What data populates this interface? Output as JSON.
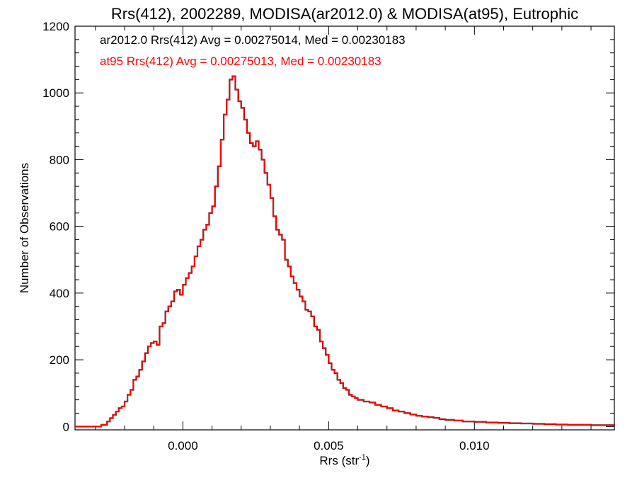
{
  "chart_data": {
    "type": "line",
    "title": "Rrs(412), 2002289, MODISA(ar2012.0) & MODISA(at95), Eutrophic",
    "xlabel": "Rrs (str",
    "xlabel_sup": "-1",
    "xlabel_close": ")",
    "ylabel": "Number of Observations",
    "xlim": [
      -0.0037,
      0.0148
    ],
    "ylim": [
      -10,
      1200
    ],
    "x_ticks": [
      0.0,
      0.005,
      0.01
    ],
    "x_tick_labels": [
      "0.000",
      "0.005",
      "0.010"
    ],
    "y_ticks": [
      0,
      200,
      400,
      600,
      800,
      1000,
      1200
    ],
    "y_tick_labels": [
      "0",
      "200",
      "400",
      "600",
      "800",
      "1000",
      "1200"
    ],
    "grid": false,
    "annotations": [
      {
        "text": "ar2012.0 Rrs(412) Avg = 0.00275014, Med = 0.00230183",
        "color": "#000000"
      },
      {
        "text": "at95 Rrs(412) Avg = 0.00275013, Med = 0.00230183",
        "color": "#ff0000"
      }
    ],
    "series": [
      {
        "color": "#000000",
        "x": [
          -0.0037,
          -0.0032,
          -0.0028,
          -0.0026,
          -0.0025,
          -0.0024,
          -0.0023,
          -0.0022,
          -0.0021,
          -0.002,
          -0.0019,
          -0.0018,
          -0.0017,
          -0.0016,
          -0.0015,
          -0.0014,
          -0.0013,
          -0.0012,
          -0.0011,
          -0.001,
          -0.0009,
          -0.0008,
          -0.0007,
          -0.0006,
          -0.0005,
          -0.0004,
          -0.0003,
          -0.0002,
          -0.0001,
          0.0,
          0.0001,
          0.0002,
          0.0003,
          0.0004,
          0.0005,
          0.0006,
          0.0007,
          0.0008,
          0.0009,
          0.001,
          0.0011,
          0.0012,
          0.0013,
          0.0014,
          0.0015,
          0.0016,
          0.0017,
          0.0018,
          0.0019,
          0.002,
          0.0021,
          0.0022,
          0.0023,
          0.0024,
          0.0025,
          0.0026,
          0.0027,
          0.0028,
          0.0029,
          0.003,
          0.0031,
          0.0032,
          0.0033,
          0.0034,
          0.0035,
          0.0036,
          0.0037,
          0.0038,
          0.0039,
          0.004,
          0.0041,
          0.0042,
          0.0043,
          0.0044,
          0.0045,
          0.0046,
          0.0047,
          0.0048,
          0.0049,
          0.005,
          0.0051,
          0.0052,
          0.0053,
          0.0054,
          0.0055,
          0.0056,
          0.0057,
          0.0058,
          0.0059,
          0.006,
          0.0062,
          0.0064,
          0.0066,
          0.0068,
          0.007,
          0.0072,
          0.0074,
          0.0076,
          0.0078,
          0.008,
          0.0082,
          0.0084,
          0.0086,
          0.0088,
          0.009,
          0.0093,
          0.0096,
          0.01,
          0.0104,
          0.0108,
          0.0112,
          0.0116,
          0.012,
          0.0124,
          0.0128,
          0.0132,
          0.0136,
          0.014,
          0.0144,
          0.0148
        ],
        "y": [
          0,
          0,
          5,
          15,
          25,
          35,
          45,
          55,
          60,
          75,
          95,
          110,
          140,
          150,
          170,
          195,
          220,
          240,
          250,
          255,
          245,
          300,
          310,
          345,
          360,
          375,
          405,
          410,
          395,
          425,
          445,
          460,
          480,
          510,
          540,
          560,
          590,
          605,
          640,
          660,
          720,
          780,
          860,
          935,
          980,
          1040,
          1050,
          1010,
          975,
          955,
          920,
          880,
          850,
          840,
          855,
          830,
          800,
          760,
          725,
          685,
          630,
          590,
          575,
          560,
          500,
          480,
          450,
          430,
          410,
          390,
          375,
          350,
          345,
          330,
          300,
          290,
          255,
          235,
          215,
          190,
          170,
          160,
          140,
          130,
          115,
          110,
          95,
          90,
          85,
          80,
          75,
          72,
          65,
          60,
          55,
          48,
          45,
          40,
          36,
          32,
          30,
          28,
          26,
          22,
          20,
          18,
          15,
          14,
          12,
          11,
          10,
          9,
          8,
          7,
          6,
          5,
          5,
          4,
          4,
          3
        ]
      },
      {
        "color": "#ff0000",
        "x": [
          -0.0037,
          -0.0032,
          -0.0028,
          -0.0026,
          -0.0025,
          -0.0024,
          -0.0023,
          -0.0022,
          -0.0021,
          -0.002,
          -0.0019,
          -0.0018,
          -0.0017,
          -0.0016,
          -0.0015,
          -0.0014,
          -0.0013,
          -0.0012,
          -0.0011,
          -0.001,
          -0.0009,
          -0.0008,
          -0.0007,
          -0.0006,
          -0.0005,
          -0.0004,
          -0.0003,
          -0.0002,
          -0.0001,
          0.0,
          0.0001,
          0.0002,
          0.0003,
          0.0004,
          0.0005,
          0.0006,
          0.0007,
          0.0008,
          0.0009,
          0.001,
          0.0011,
          0.0012,
          0.0013,
          0.0014,
          0.0015,
          0.0016,
          0.0017,
          0.0018,
          0.0019,
          0.002,
          0.0021,
          0.0022,
          0.0023,
          0.0024,
          0.0025,
          0.0026,
          0.0027,
          0.0028,
          0.0029,
          0.003,
          0.0031,
          0.0032,
          0.0033,
          0.0034,
          0.0035,
          0.0036,
          0.0037,
          0.0038,
          0.0039,
          0.004,
          0.0041,
          0.0042,
          0.0043,
          0.0044,
          0.0045,
          0.0046,
          0.0047,
          0.0048,
          0.0049,
          0.005,
          0.0051,
          0.0052,
          0.0053,
          0.0054,
          0.0055,
          0.0056,
          0.0057,
          0.0058,
          0.0059,
          0.006,
          0.0062,
          0.0064,
          0.0066,
          0.0068,
          0.007,
          0.0072,
          0.0074,
          0.0076,
          0.0078,
          0.008,
          0.0082,
          0.0084,
          0.0086,
          0.0088,
          0.009,
          0.0093,
          0.0096,
          0.01,
          0.0104,
          0.0108,
          0.0112,
          0.0116,
          0.012,
          0.0124,
          0.0128,
          0.0132,
          0.0136,
          0.014,
          0.0144,
          0.0148
        ],
        "y": [
          0,
          0,
          5,
          15,
          25,
          35,
          45,
          55,
          60,
          75,
          95,
          110,
          140,
          150,
          170,
          195,
          220,
          240,
          250,
          255,
          245,
          300,
          310,
          345,
          360,
          375,
          405,
          410,
          395,
          425,
          445,
          460,
          480,
          510,
          540,
          560,
          590,
          605,
          640,
          660,
          720,
          780,
          860,
          935,
          980,
          1040,
          1050,
          1010,
          975,
          955,
          920,
          880,
          850,
          840,
          855,
          830,
          800,
          760,
          725,
          685,
          630,
          590,
          575,
          560,
          500,
          480,
          450,
          430,
          410,
          390,
          375,
          350,
          345,
          330,
          300,
          290,
          255,
          235,
          215,
          190,
          170,
          160,
          140,
          130,
          115,
          110,
          95,
          90,
          85,
          80,
          75,
          72,
          65,
          60,
          55,
          48,
          45,
          40,
          36,
          32,
          30,
          28,
          26,
          22,
          20,
          18,
          15,
          14,
          12,
          11,
          10,
          9,
          8,
          7,
          6,
          5,
          5,
          4,
          4,
          3
        ]
      }
    ]
  }
}
